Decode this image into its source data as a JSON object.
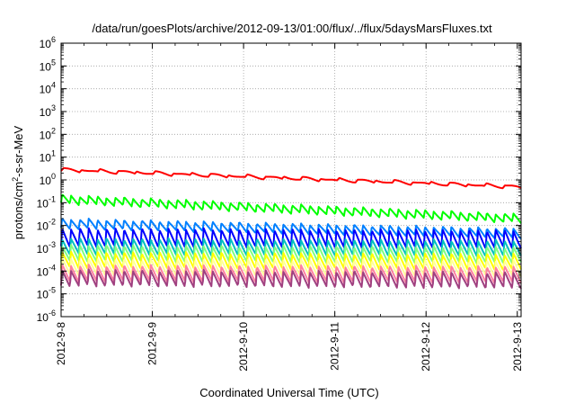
{
  "chart_data": {
    "type": "line",
    "title": "/data/run/goesPlots/archive/2012-09-13/01:00/flux/../flux/5daysMarsFluxes.txt",
    "xlabel": "Coordinated Universal Time (UTC)",
    "ylabel_base": "protons/cm",
    "ylabel_exp": "2",
    "ylabel_rest": "-s-sr-MeV",
    "y_scale": "log",
    "ylim": [
      1e-06,
      1000000.0
    ],
    "xlim": [
      "2012-09-08",
      "2012-09-13 01:00"
    ],
    "grid": true,
    "legend": "none",
    "x_tick_labels": [
      "2012-9-8",
      "2012-9-9",
      "2012-9-10",
      "2012-9-11",
      "2012-9-12",
      "2012-9-13"
    ],
    "y_tick_exponents": [
      "-6",
      "-5",
      "-4",
      "-3",
      "-2",
      "-1",
      "0",
      "1",
      "2",
      "3",
      "4",
      "5",
      "6"
    ],
    "y_tick_base": "10",
    "series": [
      {
        "color": "#ff0000",
        "start": 2.8,
        "end": 0.5,
        "amp": 1.3,
        "cycles": 25
      },
      {
        "color": "#00ff00",
        "start": 0.14,
        "end": 0.02,
        "amp": 2.3,
        "cycles": 52
      },
      {
        "color": "#0080ff",
        "start": 0.012,
        "end": 0.0045,
        "amp": 2.6,
        "cycles": 52
      },
      {
        "color": "#0000ff",
        "start": 0.003,
        "end": 0.0025,
        "amp": 6.0,
        "cycles": 52
      },
      {
        "color": "#00c0c0",
        "start": 0.0012,
        "end": 0.001,
        "amp": 5.0,
        "cycles": 52
      },
      {
        "color": "#80ff80",
        "start": 0.0006,
        "end": 0.0005,
        "amp": 5.0,
        "cycles": 52
      },
      {
        "color": "#ffff00",
        "start": 0.0003,
        "end": 0.00025,
        "amp": 5.0,
        "cycles": 52
      },
      {
        "color": "#ffff99",
        "start": 0.00015,
        "end": 0.00013,
        "amp": 5.0,
        "cycles": 52
      },
      {
        "color": "#ff80a0",
        "start": 8e-05,
        "end": 7e-05,
        "amp": 5.0,
        "cycles": 52
      },
      {
        "color": "#a04080",
        "start": 5e-05,
        "end": 4e-05,
        "amp": 5.0,
        "cycles": 52
      }
    ]
  }
}
